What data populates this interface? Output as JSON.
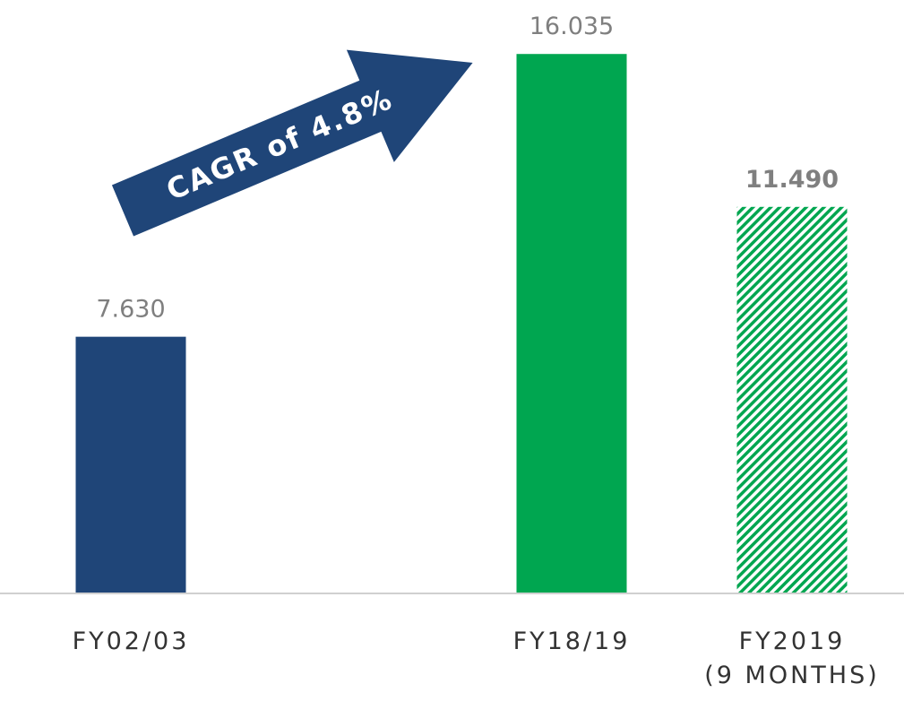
{
  "chart_data": {
    "type": "bar",
    "categories": [
      "FY02/03",
      null,
      "FY18/19",
      "FY2019\n(9 MONTHS)"
    ],
    "values": [
      7.63,
      null,
      16.035,
      11.49
    ],
    "value_labels": [
      "7.630",
      null,
      "16.035",
      "11.490"
    ],
    "colors": [
      "#1f4578",
      null,
      "#00a650",
      "#00a650"
    ],
    "hatched": [
      false,
      null,
      false,
      true
    ],
    "bold_labels": [
      false,
      null,
      false,
      true
    ],
    "ylim": [
      0,
      17
    ],
    "annotation": "CAGR of 4.8%"
  }
}
